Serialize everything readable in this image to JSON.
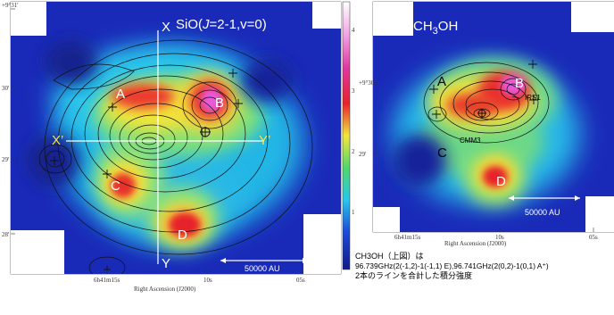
{
  "left_panel": {
    "title": "SiO(J=2-1,v=0)",
    "title_parts": [
      "SiO(",
      "J",
      "=2-1,v=0)"
    ],
    "dec_ticks": [
      "+9°31'",
      "30'",
      "29'",
      "28'"
    ],
    "ra_ticks": [
      "6h41m15s",
      "10s",
      "05s"
    ],
    "ra_axis_label": "Right Ascension (J2000)",
    "colorbar_ticks": [
      "4",
      "3",
      "2",
      "1"
    ],
    "regions": [
      "A",
      "B",
      "C",
      "D"
    ],
    "cut_labels": {
      "x": "X",
      "y": "Y",
      "x_start": "X’",
      "x_end": "Y’"
    },
    "scalebar": "50000 AU"
  },
  "right_panel": {
    "title": "CH3OH",
    "title_parts": [
      "CH",
      "3",
      "OH"
    ],
    "dec_ticks": [
      "+9°30'",
      "29'"
    ],
    "ra_ticks": [
      "6h41m15s",
      "10s",
      "05s"
    ],
    "ra_axis_label": "Right Ascension (J2000)",
    "regions": [
      "A",
      "B",
      "C",
      "D"
    ],
    "source_labels": [
      "IRS1",
      "CMM3"
    ],
    "scalebar": "50000 AU"
  },
  "caption": {
    "line1": "CH3OH（上図）は",
    "line2": "96.739GHz(2(-1,2)-1(-1,1) E),96.741GHz(2(0,2)-1(0,1) A⁺)",
    "line3": "2本のラインを合計した積分強度"
  },
  "colors": {
    "map_blue": "#1c2cc8",
    "map_cyan": "#27c8ee",
    "map_yellow": "#f4e63a",
    "map_red": "#e8222a",
    "map_magenta": "#e85ad8",
    "overlay_white": "#ffffff"
  }
}
